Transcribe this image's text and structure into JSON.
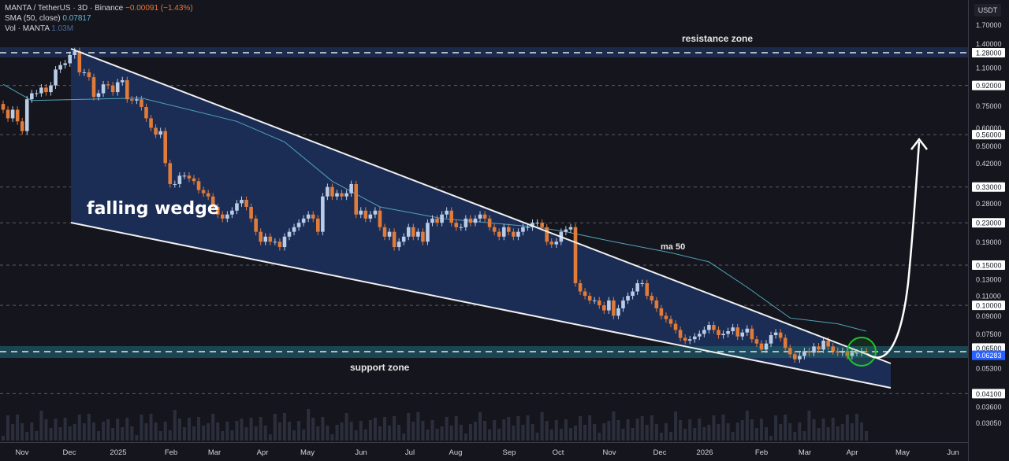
{
  "header": {
    "symbol": "MANTA / TetherUS · 3D · Binance",
    "change": "−0.00091 (−1.43%)",
    "sma_label": "SMA (50, close)",
    "sma_value": "0.07817",
    "vol_label": "Vol · MANTA",
    "vol_value": "1.03M"
  },
  "axis": {
    "unit": "USDT"
  },
  "colors": {
    "up": "#b9cde9",
    "down": "#e07b39",
    "ma": "#4fa3b8",
    "wedge": "#1c2d55",
    "support": "#1d5566",
    "circle": "#22c32e"
  },
  "chart_data": {
    "type": "candlestick",
    "scale": "log",
    "grid": false,
    "y_ticks": [
      "1.70000",
      "1.40000",
      "1.28000",
      "1.10000",
      "0.92000",
      "0.75000",
      "0.60000",
      "0.56000",
      "0.50000",
      "0.42000",
      "0.33000",
      "0.28000",
      "0.23000",
      "0.19000",
      "0.15000",
      "0.13000",
      "0.11000",
      "0.10000",
      "0.09000",
      "0.07500",
      "0.06500",
      "0.05300",
      "0.04100",
      "0.03600",
      "0.03050"
    ],
    "highlighted_levels": [
      "1.28000",
      "0.92000",
      "0.56000",
      "0.33000",
      "0.23000",
      "0.15000",
      "0.10000",
      "0.06500",
      "0.04100"
    ],
    "last_price": "0.06283",
    "x_ticks": [
      "Nov",
      "Dec",
      "2025",
      "Feb",
      "Mar",
      "Apr",
      "May",
      "Jun",
      "Jul",
      "Aug",
      "Sep",
      "Oct",
      "Nov",
      "Dec",
      "2026",
      "Feb",
      "Mar",
      "Apr",
      "May",
      "Jun"
    ],
    "closes": [
      0.72,
      0.66,
      0.72,
      0.64,
      0.58,
      0.8,
      0.85,
      0.85,
      0.9,
      0.86,
      0.92,
      1.08,
      1.13,
      1.15,
      1.25,
      1.3,
      1.05,
      1.05,
      1.0,
      0.82,
      0.85,
      0.93,
      0.92,
      0.86,
      0.95,
      0.97,
      0.8,
      0.79,
      0.8,
      0.74,
      0.66,
      0.6,
      0.56,
      0.58,
      0.42,
      0.34,
      0.34,
      0.37,
      0.37,
      0.36,
      0.35,
      0.32,
      0.31,
      0.3,
      0.27,
      0.25,
      0.24,
      0.25,
      0.26,
      0.28,
      0.29,
      0.27,
      0.24,
      0.21,
      0.19,
      0.2,
      0.19,
      0.19,
      0.18,
      0.2,
      0.21,
      0.22,
      0.23,
      0.24,
      0.25,
      0.24,
      0.21,
      0.3,
      0.33,
      0.3,
      0.31,
      0.3,
      0.31,
      0.34,
      0.25,
      0.26,
      0.24,
      0.25,
      0.26,
      0.22,
      0.2,
      0.21,
      0.18,
      0.19,
      0.2,
      0.22,
      0.2,
      0.21,
      0.19,
      0.23,
      0.24,
      0.23,
      0.25,
      0.26,
      0.23,
      0.22,
      0.22,
      0.24,
      0.23,
      0.24,
      0.25,
      0.24,
      0.22,
      0.21,
      0.2,
      0.22,
      0.21,
      0.2,
      0.21,
      0.22,
      0.22,
      0.23,
      0.23,
      0.22,
      0.19,
      0.185,
      0.19,
      0.21,
      0.215,
      0.22,
      0.125,
      0.115,
      0.11,
      0.105,
      0.105,
      0.1,
      0.095,
      0.105,
      0.09,
      0.097,
      0.105,
      0.11,
      0.115,
      0.125,
      0.125,
      0.11,
      0.105,
      0.097,
      0.09,
      0.087,
      0.083,
      0.078,
      0.072,
      0.07,
      0.071,
      0.073,
      0.075,
      0.078,
      0.082,
      0.078,
      0.074,
      0.075,
      0.077,
      0.08,
      0.073,
      0.076,
      0.079,
      0.071,
      0.068,
      0.064,
      0.068,
      0.074,
      0.076,
      0.072,
      0.065,
      0.061,
      0.058,
      0.06,
      0.063,
      0.062,
      0.066,
      0.064,
      0.07,
      0.066,
      0.063,
      0.062,
      0.063,
      0.06,
      0.062,
      0.062,
      0.063,
      0.0628
    ],
    "ma50": [
      [
        0,
        0.93
      ],
      [
        6,
        0.79
      ],
      [
        29,
        0.81
      ],
      [
        49,
        0.64
      ],
      [
        59,
        0.52
      ],
      [
        69,
        0.35
      ],
      [
        79,
        0.27
      ],
      [
        92,
        0.24
      ],
      [
        102,
        0.23
      ],
      [
        112,
        0.22
      ],
      [
        118,
        0.21
      ],
      [
        128,
        0.19
      ],
      [
        140,
        0.17
      ],
      [
        148,
        0.155
      ],
      [
        156,
        0.12
      ],
      [
        165,
        0.088
      ],
      [
        175,
        0.083
      ],
      [
        181,
        0.077
      ]
    ],
    "annotations": {
      "resistance": "resistance zone",
      "wedge": "falling wedge",
      "ma": "ma 50",
      "support": "support zone"
    }
  }
}
